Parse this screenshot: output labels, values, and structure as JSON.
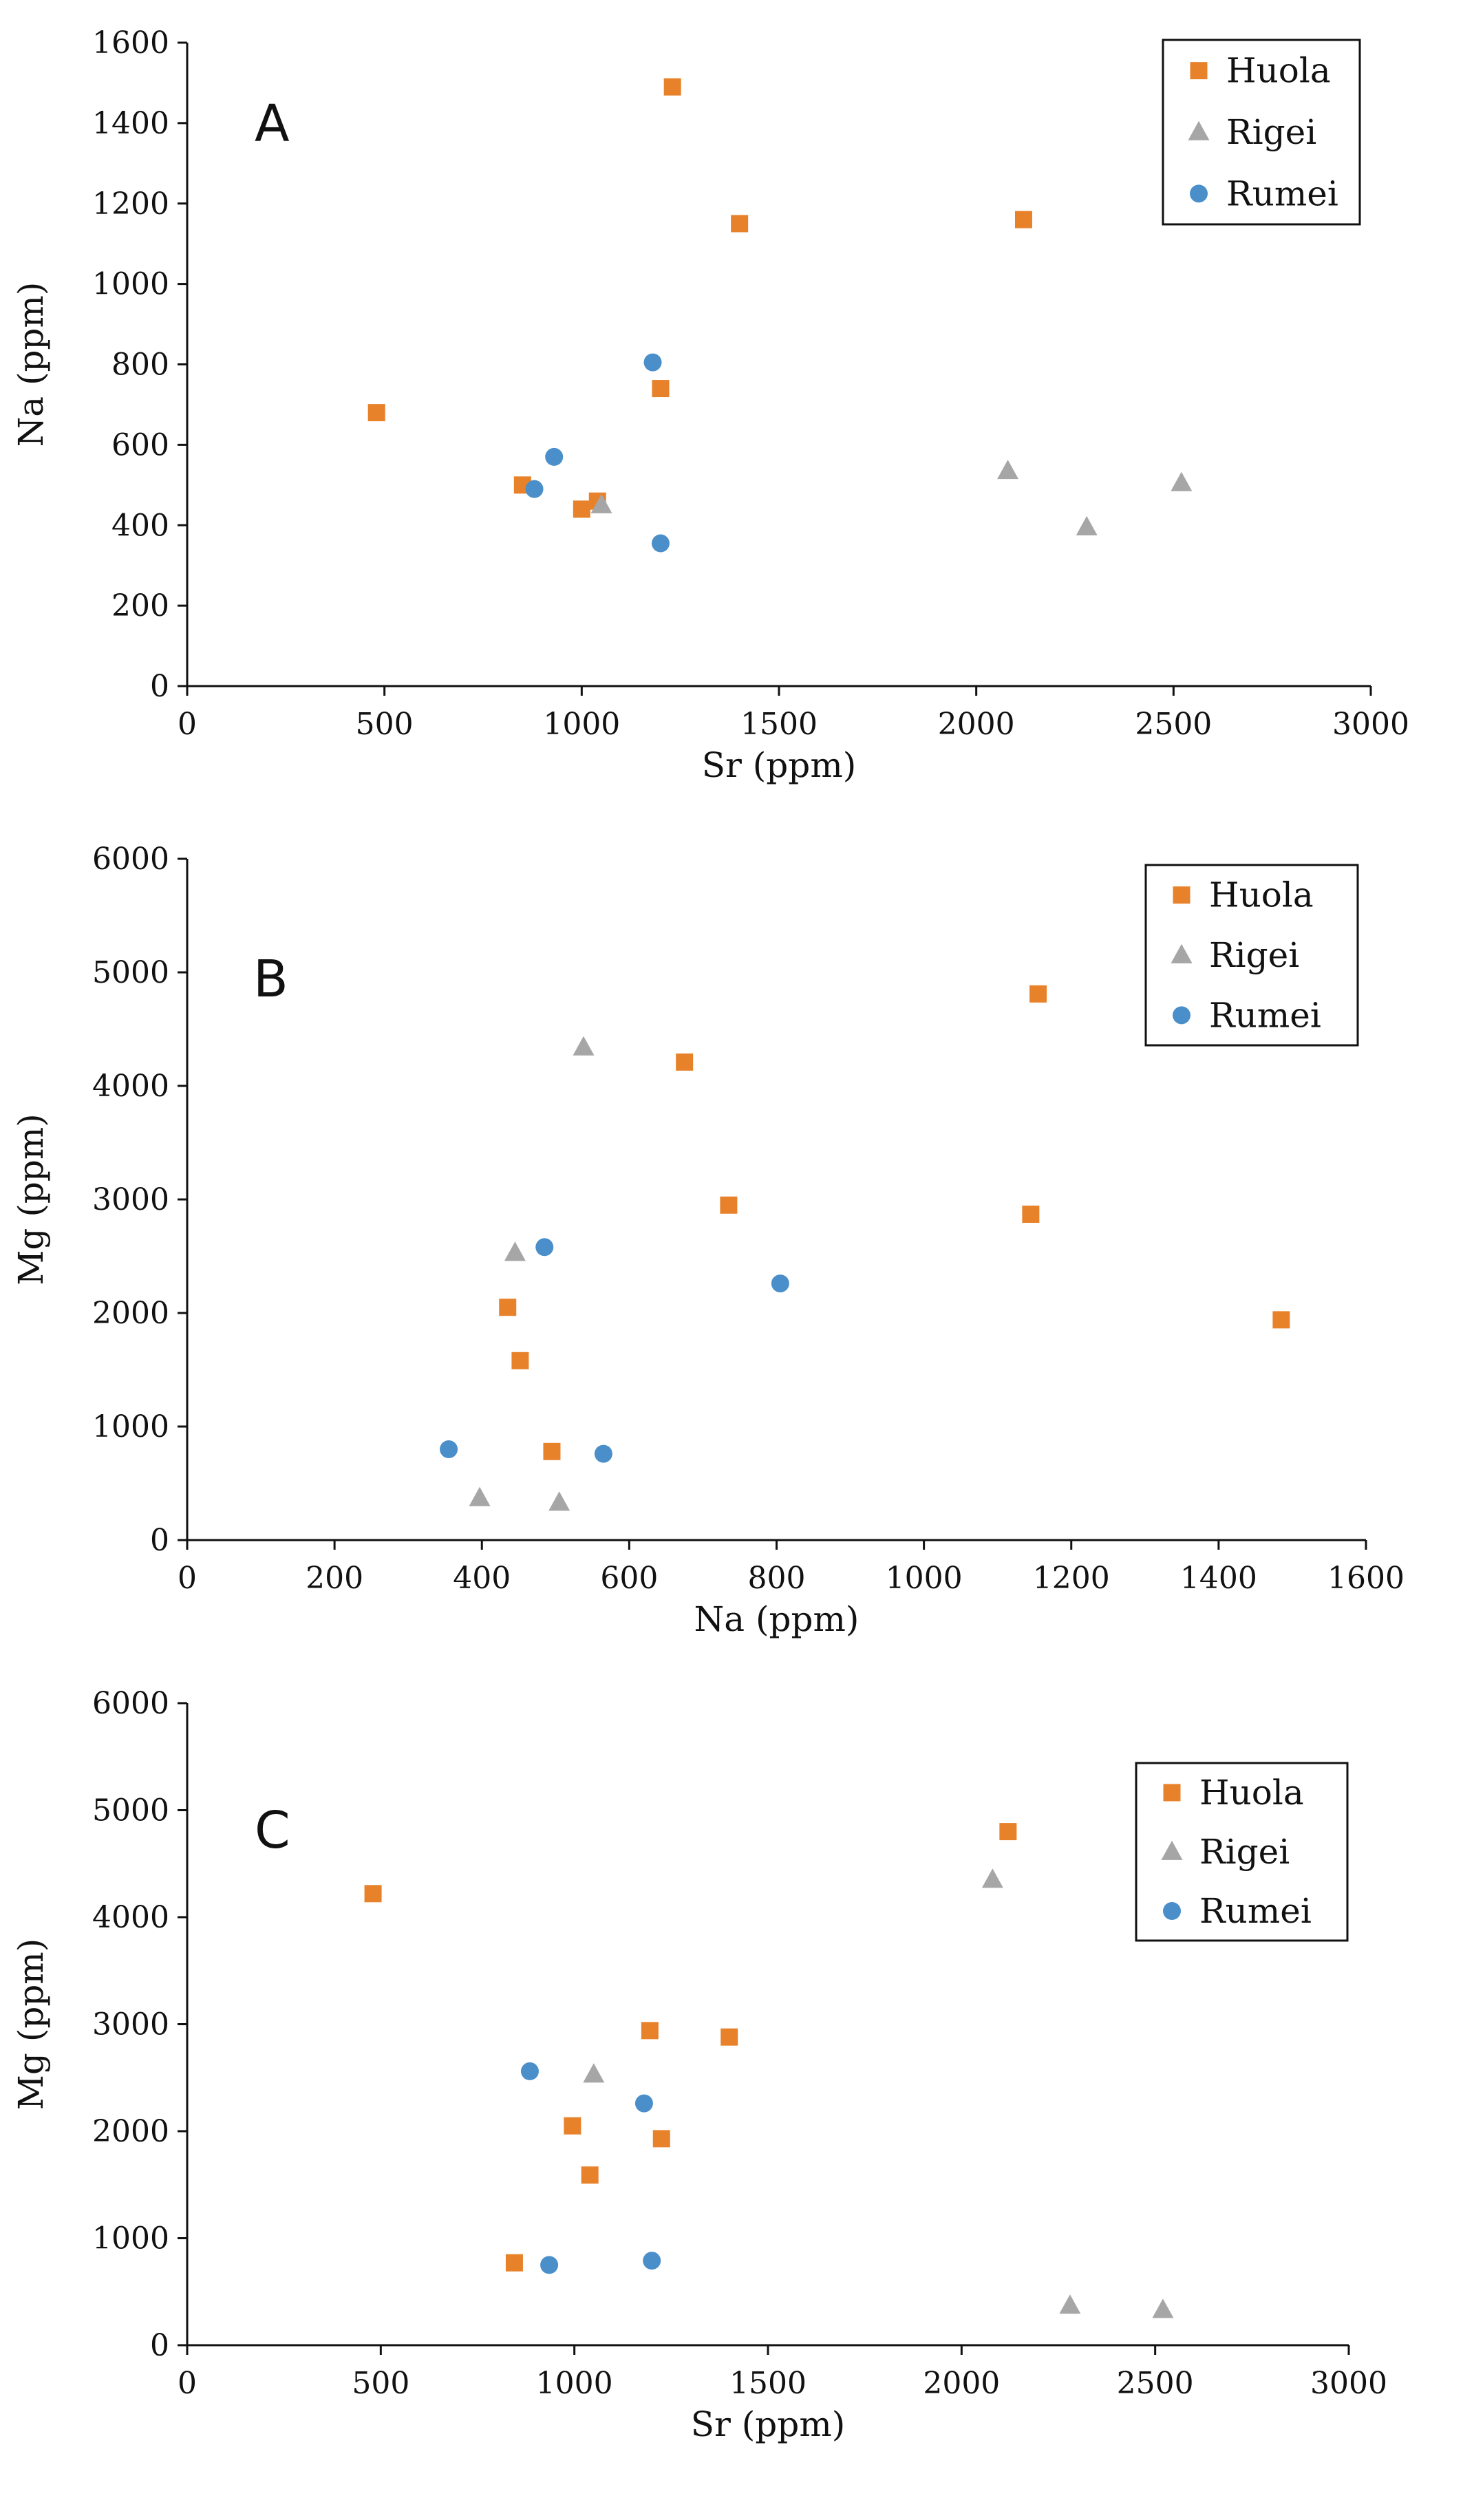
{
  "colors": {
    "Huola": "#E8822A",
    "Rigei": "#A6A6A6",
    "Rumei": "#4A8FC9"
  },
  "chart_data": [
    {
      "type": "scatter",
      "panel_label": "A",
      "title": "",
      "xlabel": "Sr (ppm)",
      "ylabel": "Na (ppm)",
      "xlim": [
        0,
        3000
      ],
      "ylim": [
        0,
        1600
      ],
      "xticks": [
        0,
        500,
        1000,
        1500,
        2000,
        2500,
        3000
      ],
      "yticks": [
        0,
        200,
        400,
        600,
        800,
        1000,
        1200,
        1400,
        1600
      ],
      "grid": false,
      "legend": "top-right",
      "series": [
        {
          "name": "Huola",
          "marker": "square",
          "points": [
            [
              480,
              680
            ],
            [
              850,
              500
            ],
            [
              1000,
              440
            ],
            [
              1040,
              460
            ],
            [
              1200,
              740
            ],
            [
              1230,
              1490
            ],
            [
              1400,
              1150
            ],
            [
              2120,
              1160
            ]
          ]
        },
        {
          "name": "Rigei",
          "marker": "triangle",
          "points": [
            [
              1050,
              450
            ],
            [
              2080,
              535
            ],
            [
              2280,
              395
            ],
            [
              2520,
              505
            ]
          ]
        },
        {
          "name": "Rumei",
          "marker": "circle",
          "points": [
            [
              880,
              490
            ],
            [
              930,
              570
            ],
            [
              1180,
              805
            ],
            [
              1200,
              355
            ]
          ]
        }
      ]
    },
    {
      "type": "scatter",
      "panel_label": "B",
      "title": "",
      "xlabel": "Na (ppm)",
      "ylabel": "Mg (ppm)",
      "xlim": [
        0,
        1600
      ],
      "ylim": [
        0,
        6000
      ],
      "xticks": [
        0,
        200,
        400,
        600,
        800,
        1000,
        1200,
        1400,
        1600
      ],
      "yticks": [
        0,
        1000,
        2000,
        3000,
        4000,
        5000,
        6000
      ],
      "grid": false,
      "legend": "top-right",
      "series": [
        {
          "name": "Huola",
          "marker": "square",
          "points": [
            [
              435,
              2050
            ],
            [
              452,
              1580
            ],
            [
              495,
              780
            ],
            [
              675,
              4210
            ],
            [
              735,
              2950
            ],
            [
              1145,
              2870
            ],
            [
              1155,
              4810
            ],
            [
              1485,
              1940
            ]
          ]
        },
        {
          "name": "Rigei",
          "marker": "triangle",
          "points": [
            [
              397,
              370
            ],
            [
              445,
              2530
            ],
            [
              505,
              330
            ],
            [
              538,
              4340
            ]
          ]
        },
        {
          "name": "Rumei",
          "marker": "circle",
          "points": [
            [
              355,
              800
            ],
            [
              485,
              2580
            ],
            [
              565,
              760
            ],
            [
              805,
              2260
            ]
          ]
        }
      ]
    },
    {
      "type": "scatter",
      "panel_label": "C",
      "title": "",
      "xlabel": "Sr (ppm)",
      "ylabel": "Mg (ppm)",
      "xlim": [
        0,
        3000
      ],
      "ylim": [
        0,
        6000
      ],
      "xticks": [
        0,
        500,
        1000,
        1500,
        2000,
        2500,
        3000
      ],
      "yticks": [
        0,
        1000,
        2000,
        3000,
        4000,
        5000,
        6000
      ],
      "grid": false,
      "legend": "top-right",
      "series": [
        {
          "name": "Huola",
          "marker": "square",
          "points": [
            [
              480,
              4220
            ],
            [
              845,
              770
            ],
            [
              995,
              2050
            ],
            [
              1040,
              1590
            ],
            [
              1195,
              2940
            ],
            [
              1225,
              1930
            ],
            [
              1400,
              2880
            ],
            [
              2120,
              4800
            ]
          ]
        },
        {
          "name": "Rigei",
          "marker": "triangle",
          "points": [
            [
              1050,
              2530
            ],
            [
              2080,
              4350
            ],
            [
              2280,
              370
            ],
            [
              2520,
              330
            ]
          ]
        },
        {
          "name": "Rumei",
          "marker": "circle",
          "points": [
            [
              885,
              2560
            ],
            [
              935,
              750
            ],
            [
              1180,
              2260
            ],
            [
              1200,
              790
            ]
          ]
        }
      ]
    }
  ]
}
